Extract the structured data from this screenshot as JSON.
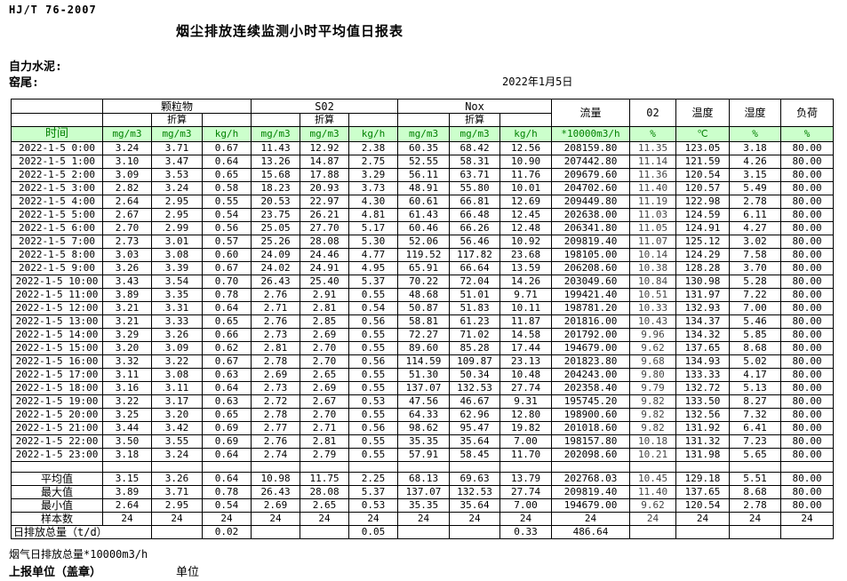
{
  "page": {
    "doc_code": "HJ/T 76-2007",
    "title": "烟尘排放连续监测小时平均值日报表",
    "company": "自力水泥:",
    "location": "窑尾:",
    "date": "2022年1月5日"
  },
  "colors": {
    "header_bg": "#ccffcc",
    "header_text": "#008000"
  },
  "table": {
    "time_header": "时间",
    "converted_label": "折算",
    "groups": [
      {
        "label": "颗粒物"
      },
      {
        "label": "S02"
      },
      {
        "label": "Nox"
      }
    ],
    "singles": [
      {
        "label": "流量"
      },
      {
        "label": "02"
      },
      {
        "label": "温度"
      },
      {
        "label": "湿度"
      },
      {
        "label": "负荷"
      }
    ],
    "units": [
      "mg/m3",
      "mg/m3",
      "kg/h",
      "mg/m3",
      "mg/m3",
      "kg/h",
      "mg/m3",
      "mg/m3",
      "kg/h",
      "*10000m3/h",
      "%",
      "℃",
      "%",
      "%"
    ],
    "rows": [
      {
        "time": "2022-1-5 0:00",
        "v": [
          "3.24",
          "3.71",
          "0.67",
          "11.43",
          "12.92",
          "2.38",
          "60.35",
          "68.42",
          "12.56",
          "208159.80",
          "11.35",
          "123.05",
          "3.18",
          "80.00"
        ]
      },
      {
        "time": "2022-1-5 1:00",
        "v": [
          "3.10",
          "3.47",
          "0.64",
          "13.26",
          "14.87",
          "2.75",
          "52.55",
          "58.31",
          "10.90",
          "207442.80",
          "11.14",
          "121.59",
          "4.26",
          "80.00"
        ]
      },
      {
        "time": "2022-1-5 2:00",
        "v": [
          "3.09",
          "3.53",
          "0.65",
          "15.68",
          "17.88",
          "3.29",
          "56.11",
          "63.71",
          "11.76",
          "209679.60",
          "11.36",
          "120.54",
          "3.15",
          "80.00"
        ]
      },
      {
        "time": "2022-1-5 3:00",
        "v": [
          "2.82",
          "3.24",
          "0.58",
          "18.23",
          "20.93",
          "3.73",
          "48.91",
          "55.80",
          "10.01",
          "204702.60",
          "11.40",
          "120.57",
          "5.49",
          "80.00"
        ]
      },
      {
        "time": "2022-1-5 4:00",
        "v": [
          "2.64",
          "2.95",
          "0.55",
          "20.53",
          "22.97",
          "4.30",
          "60.61",
          "66.81",
          "12.69",
          "209449.80",
          "11.19",
          "122.98",
          "2.78",
          "80.00"
        ]
      },
      {
        "time": "2022-1-5 5:00",
        "v": [
          "2.67",
          "2.95",
          "0.54",
          "23.75",
          "26.21",
          "4.81",
          "61.43",
          "66.48",
          "12.45",
          "202638.00",
          "11.03",
          "124.59",
          "6.11",
          "80.00"
        ]
      },
      {
        "time": "2022-1-5 6:00",
        "v": [
          "2.70",
          "2.99",
          "0.56",
          "25.05",
          "27.70",
          "5.17",
          "60.46",
          "66.26",
          "12.48",
          "206341.80",
          "11.05",
          "124.91",
          "4.27",
          "80.00"
        ]
      },
      {
        "time": "2022-1-5 7:00",
        "v": [
          "2.73",
          "3.01",
          "0.57",
          "25.26",
          "28.08",
          "5.30",
          "52.06",
          "56.46",
          "10.92",
          "209819.40",
          "11.07",
          "125.12",
          "3.02",
          "80.00"
        ]
      },
      {
        "time": "2022-1-5 8:00",
        "v": [
          "3.03",
          "3.08",
          "0.60",
          "24.09",
          "24.46",
          "4.77",
          "119.52",
          "117.82",
          "23.68",
          "198105.00",
          "10.14",
          "124.29",
          "7.58",
          "80.00"
        ]
      },
      {
        "time": "2022-1-5 9:00",
        "v": [
          "3.26",
          "3.39",
          "0.67",
          "24.02",
          "24.91",
          "4.95",
          "65.91",
          "66.64",
          "13.59",
          "206208.60",
          "10.38",
          "128.28",
          "3.70",
          "80.00"
        ]
      },
      {
        "time": "2022-1-5 10:00",
        "v": [
          "3.43",
          "3.54",
          "0.70",
          "26.43",
          "25.40",
          "5.37",
          "70.22",
          "72.04",
          "14.26",
          "203049.60",
          "10.84",
          "130.98",
          "5.28",
          "80.00"
        ]
      },
      {
        "time": "2022-1-5 11:00",
        "v": [
          "3.89",
          "3.35",
          "0.78",
          "2.76",
          "2.91",
          "0.55",
          "48.68",
          "51.01",
          "9.71",
          "199421.40",
          "10.51",
          "131.97",
          "7.22",
          "80.00"
        ]
      },
      {
        "time": "2022-1-5 12:00",
        "v": [
          "3.21",
          "3.31",
          "0.64",
          "2.71",
          "2.81",
          "0.54",
          "50.87",
          "51.83",
          "10.11",
          "198781.20",
          "10.33",
          "132.93",
          "7.00",
          "80.00"
        ]
      },
      {
        "time": "2022-1-5 13:00",
        "v": [
          "3.21",
          "3.33",
          "0.65",
          "2.76",
          "2.85",
          "0.56",
          "58.81",
          "61.23",
          "11.87",
          "201816.00",
          "10.43",
          "134.37",
          "5.46",
          "80.00"
        ]
      },
      {
        "time": "2022-1-5 14:00",
        "v": [
          "3.29",
          "3.26",
          "0.66",
          "2.73",
          "2.69",
          "0.55",
          "72.27",
          "71.02",
          "14.58",
          "201792.00",
          "9.96",
          "134.32",
          "5.85",
          "80.00"
        ]
      },
      {
        "time": "2022-1-5 15:00",
        "v": [
          "3.20",
          "3.09",
          "0.62",
          "2.81",
          "2.70",
          "0.55",
          "89.60",
          "85.28",
          "17.44",
          "194679.00",
          "9.62",
          "137.65",
          "8.68",
          "80.00"
        ]
      },
      {
        "time": "2022-1-5 16:00",
        "v": [
          "3.32",
          "3.22",
          "0.67",
          "2.78",
          "2.70",
          "0.56",
          "114.59",
          "109.87",
          "23.13",
          "201823.80",
          "9.68",
          "134.93",
          "5.02",
          "80.00"
        ]
      },
      {
        "time": "2022-1-5 17:00",
        "v": [
          "3.11",
          "3.08",
          "0.63",
          "2.69",
          "2.65",
          "0.55",
          "51.30",
          "50.34",
          "10.48",
          "204243.00",
          "9.80",
          "133.33",
          "4.17",
          "80.00"
        ]
      },
      {
        "time": "2022-1-5 18:00",
        "v": [
          "3.16",
          "3.11",
          "0.64",
          "2.73",
          "2.69",
          "0.55",
          "137.07",
          "132.53",
          "27.74",
          "202358.40",
          "9.79",
          "132.72",
          "5.13",
          "80.00"
        ]
      },
      {
        "time": "2022-1-5 19:00",
        "v": [
          "3.22",
          "3.17",
          "0.63",
          "2.72",
          "2.67",
          "0.53",
          "47.56",
          "46.67",
          "9.31",
          "195745.20",
          "9.82",
          "133.50",
          "8.27",
          "80.00"
        ]
      },
      {
        "time": "2022-1-5 20:00",
        "v": [
          "3.25",
          "3.20",
          "0.65",
          "2.78",
          "2.70",
          "0.55",
          "64.33",
          "62.96",
          "12.80",
          "198900.60",
          "9.82",
          "132.56",
          "7.32",
          "80.00"
        ]
      },
      {
        "time": "2022-1-5 21:00",
        "v": [
          "3.44",
          "3.42",
          "0.69",
          "2.77",
          "2.71",
          "0.56",
          "98.62",
          "95.47",
          "19.82",
          "201018.60",
          "9.82",
          "131.92",
          "6.41",
          "80.00"
        ]
      },
      {
        "time": "2022-1-5 22:00",
        "v": [
          "3.50",
          "3.55",
          "0.69",
          "2.76",
          "2.81",
          "0.55",
          "35.35",
          "35.64",
          "7.00",
          "198157.80",
          "10.18",
          "131.32",
          "7.23",
          "80.00"
        ]
      },
      {
        "time": "2022-1-5 23:00",
        "v": [
          "3.18",
          "3.24",
          "0.64",
          "2.74",
          "2.79",
          "0.55",
          "57.91",
          "58.45",
          "11.70",
          "202098.60",
          "10.21",
          "131.98",
          "5.65",
          "80.00"
        ]
      }
    ],
    "summary": [
      {
        "label": "平均值",
        "v": [
          "3.15",
          "3.26",
          "0.64",
          "10.98",
          "11.75",
          "2.25",
          "68.13",
          "69.63",
          "13.79",
          "202768.03",
          "10.45",
          "129.18",
          "5.51",
          "80.00"
        ]
      },
      {
        "label": "最大值",
        "v": [
          "3.89",
          "3.71",
          "0.78",
          "26.43",
          "28.08",
          "5.37",
          "137.07",
          "132.53",
          "27.74",
          "209819.40",
          "11.40",
          "137.65",
          "8.68",
          "80.00"
        ]
      },
      {
        "label": "最小值",
        "v": [
          "2.64",
          "2.95",
          "0.54",
          "2.69",
          "2.65",
          "0.53",
          "35.35",
          "35.64",
          "7.00",
          "194679.00",
          "9.62",
          "120.54",
          "2.78",
          "80.00"
        ]
      },
      {
        "label": "样本数",
        "v": [
          "24",
          "24",
          "24",
          "24",
          "24",
          "24",
          "24",
          "24",
          "24",
          "24",
          "24",
          "24",
          "24",
          "24"
        ]
      },
      {
        "label": "日排放总量（t/d）",
        "colspan": 2,
        "v": [
          "",
          "",
          "0.02",
          "",
          "",
          "0.05",
          "",
          "",
          "0.33",
          "486.64",
          "",
          "",
          "",
          ""
        ]
      }
    ]
  },
  "footer": {
    "flow_note": "烟气日排放总量*10000m3/h",
    "report_unit": "上报单位（盖章）",
    "unit_label": "单位"
  }
}
